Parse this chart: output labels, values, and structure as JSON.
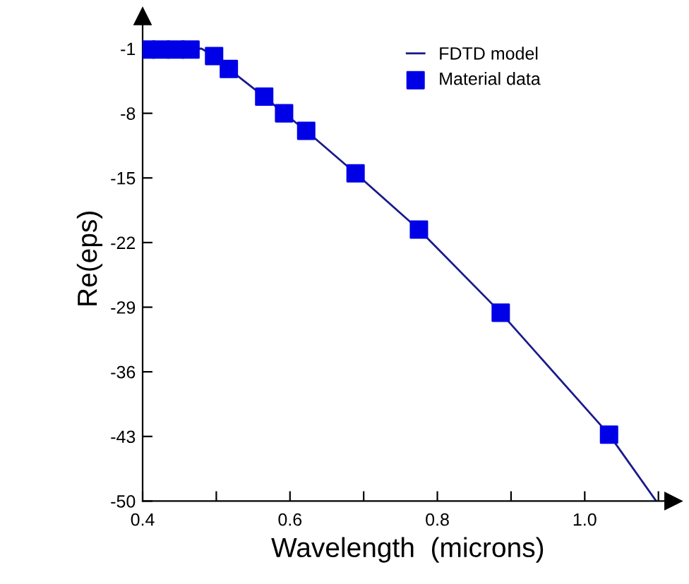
{
  "chart_data": {
    "type": "line",
    "xlabel": "Wavelength  (microns)",
    "ylabel": "Re(eps)",
    "series": [
      {
        "name": "FDTD model",
        "color": "#1a1a8c",
        "marker": "none",
        "line_style": "solid",
        "x": [
          0.4,
          0.48,
          0.497,
          0.517,
          0.565,
          0.592,
          0.622,
          0.689,
          0.775,
          0.886,
          1.033,
          1.097
        ],
        "values": [
          -1.0,
          -1.0,
          -1.8,
          -3.2,
          -6.2,
          -8.0,
          -9.9,
          -14.5,
          -20.6,
          -29.6,
          -42.8,
          -50.0
        ]
      },
      {
        "name": "Material data",
        "type": "scatter",
        "color": "#0000e6",
        "marker": "square",
        "x": [
          0.405,
          0.425,
          0.445,
          0.465,
          0.497,
          0.517,
          0.565,
          0.592,
          0.622,
          0.689,
          0.775,
          0.886,
          1.033
        ],
        "values": [
          -1.1,
          -1.1,
          -1.1,
          -1.1,
          -1.8,
          -3.2,
          -6.2,
          -8.0,
          -9.9,
          -14.5,
          -20.6,
          -29.6,
          -42.8
        ]
      }
    ],
    "xlim": [
      0.4,
      1.12
    ],
    "ylim": [
      -50,
      2.5
    ],
    "xticks": [
      {
        "value": 0.4,
        "label": "0.4"
      },
      {
        "value": 0.5,
        "label": null
      },
      {
        "value": 0.6,
        "label": "0.6"
      },
      {
        "value": 0.7,
        "label": null
      },
      {
        "value": 0.8,
        "label": "0.8"
      },
      {
        "value": 0.9,
        "label": null
      },
      {
        "value": 1.0,
        "label": "1.0"
      },
      {
        "value": 1.1,
        "label": null
      }
    ],
    "yticks": [
      -1,
      -8,
      -15,
      -22,
      -29,
      -36,
      -43,
      -50
    ],
    "grid": false,
    "legend": "top right"
  }
}
